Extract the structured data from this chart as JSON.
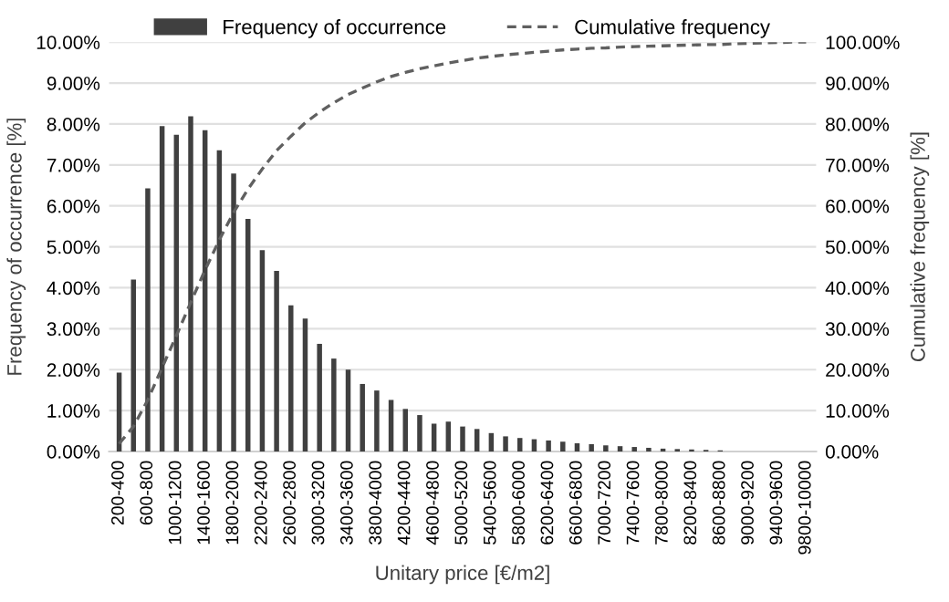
{
  "chart_data": {
    "type": "bar",
    "xlabel": "Unitary price [€/m2]",
    "ylabel": "Frequency of occurrence [%]",
    "y2label": "Cumulative frequency [%]",
    "categories": [
      "200-400",
      null,
      "600-800",
      null,
      "1000-1200",
      null,
      "1400-1600",
      null,
      "1800-2000",
      null,
      "2200-2400",
      null,
      "2600-2800",
      null,
      "3000-3200",
      null,
      "3400-3600",
      null,
      "3800-4000",
      null,
      "4200-4400",
      null,
      "4600-4800",
      null,
      "5000-5200",
      null,
      "5400-5600",
      null,
      "5800-6000",
      null,
      "6200-6400",
      null,
      "6600-6800",
      null,
      "7000-7200",
      null,
      "7400-7600",
      null,
      "7800-8000",
      null,
      "8200-8400",
      null,
      "8600-8800",
      null,
      "9000-9200",
      null,
      "9400-9600",
      null,
      "9800-10000"
    ],
    "series": [
      {
        "name": "Frequency of occurrence",
        "color": "#404040",
        "values": [
          1.93,
          4.2,
          6.43,
          7.95,
          7.74,
          8.19,
          7.85,
          7.36,
          6.79,
          5.68,
          4.92,
          4.41,
          3.57,
          3.25,
          2.63,
          2.27,
          2.0,
          1.65,
          1.49,
          1.26,
          1.04,
          0.89,
          0.68,
          0.73,
          0.61,
          0.55,
          0.45,
          0.37,
          0.33,
          0.3,
          0.27,
          0.24,
          0.2,
          0.18,
          0.15,
          0.13,
          0.11,
          0.09,
          0.07,
          0.06,
          0.05,
          0.04,
          0.03,
          0,
          0,
          0,
          0,
          0,
          0
        ]
      },
      {
        "name": "Cumulative frequency",
        "type": "line",
        "axis": "y2",
        "color": "#606060",
        "line_style": "dashed",
        "values": [
          1.9,
          6.1,
          12.6,
          20.5,
          28.3,
          36.4,
          44.3,
          51.7,
          58.4,
          64.1,
          69.0,
          73.5,
          77.0,
          80.3,
          82.9,
          85.2,
          87.2,
          88.8,
          90.3,
          91.6,
          92.6,
          93.5,
          94.2,
          94.9,
          95.5,
          96.1,
          96.5,
          96.9,
          97.2,
          97.5,
          97.8,
          98.1,
          98.3,
          98.5,
          98.6,
          98.8,
          98.9,
          99.0,
          99.1,
          99.2,
          99.3,
          99.4,
          99.4,
          99.6,
          99.7,
          99.8,
          99.9,
          100,
          100
        ]
      }
    ],
    "ylim": [
      0,
      10
    ],
    "yticks": [
      {
        "value": 0,
        "label": "0.00%"
      },
      {
        "value": 1,
        "label": "1.00%"
      },
      {
        "value": 2,
        "label": "2.00%"
      },
      {
        "value": 3,
        "label": "3.00%"
      },
      {
        "value": 4,
        "label": "4.00%"
      },
      {
        "value": 5,
        "label": "5.00%"
      },
      {
        "value": 6,
        "label": "6.00%"
      },
      {
        "value": 7,
        "label": "7.00%"
      },
      {
        "value": 8,
        "label": "8.00%"
      },
      {
        "value": 9,
        "label": "9.00%"
      },
      {
        "value": 10,
        "label": "10.00%"
      }
    ],
    "y2lim": [
      0,
      100
    ],
    "y2ticks": [
      {
        "value": 0,
        "label": "0.00%"
      },
      {
        "value": 10,
        "label": "10.00%"
      },
      {
        "value": 20,
        "label": "20.00%"
      },
      {
        "value": 30,
        "label": "30.00%"
      },
      {
        "value": 40,
        "label": "40.00%"
      },
      {
        "value": 50,
        "label": "50.00%"
      },
      {
        "value": 60,
        "label": "60.00%"
      },
      {
        "value": 70,
        "label": "70.00%"
      },
      {
        "value": 80,
        "label": "80.00%"
      },
      {
        "value": 90,
        "label": "90.00%"
      },
      {
        "value": 100,
        "label": "100.00%"
      }
    ],
    "grid": "y",
    "legend": "top"
  }
}
